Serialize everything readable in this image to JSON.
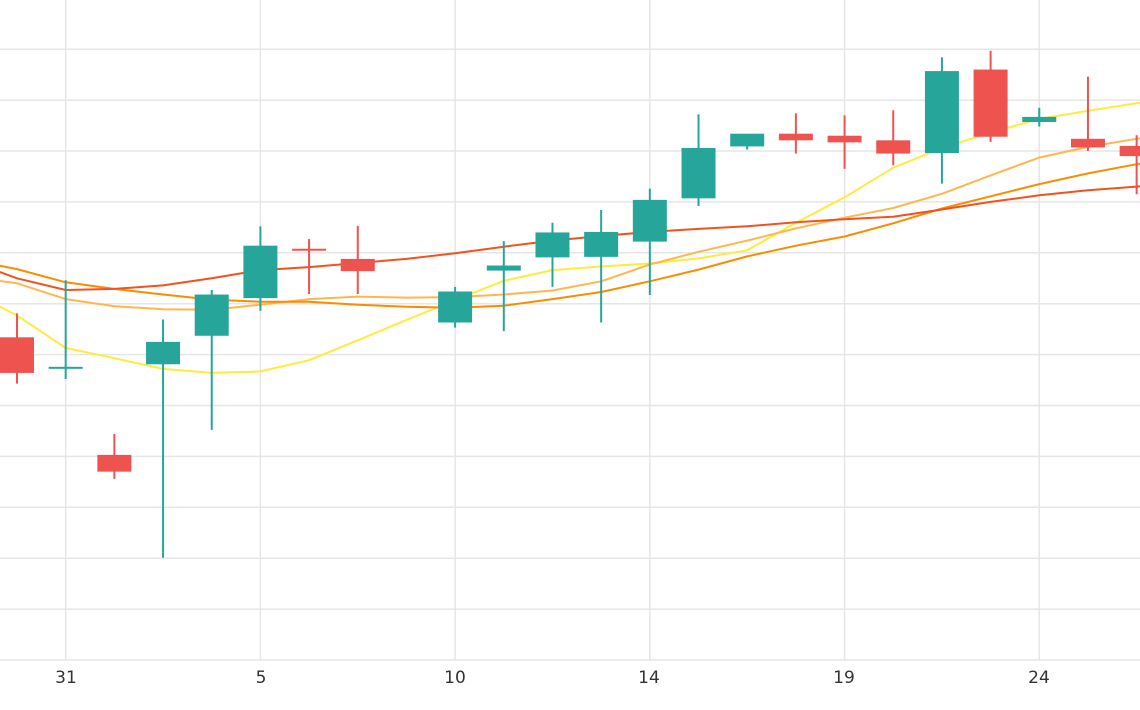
{
  "chart_data": {
    "type": "candlestick",
    "title": "",
    "xlabel": "",
    "ylabel": "",
    "x_tick_labels": [
      "31",
      "5",
      "10",
      "14",
      "19",
      "24"
    ],
    "y_unit": "price (unlabeled, gridline units)",
    "ylim": [
      0,
      13
    ],
    "grid": true,
    "legend": "none",
    "colors": {
      "up": "#26a69a",
      "down": "#ef5350",
      "ma_yellow": "#ffeb3b",
      "ma_light_orange": "#ffb74d",
      "ma_orange": "#fb8c00",
      "ma_red": "#f4511e",
      "grid": "#e6e6e6",
      "text": "#333333"
    },
    "candles": [
      {
        "day": 30,
        "open": 6.34,
        "high": 6.81,
        "low": 5.43,
        "close": 5.64
      },
      {
        "day": 31,
        "open": 5.76,
        "high": 7.46,
        "low": 5.52,
        "close": 5.76
      },
      {
        "day": 1,
        "open": 4.03,
        "high": 4.44,
        "low": 3.56,
        "close": 3.7
      },
      {
        "day": 2,
        "open": 5.81,
        "high": 6.69,
        "low": 2.01,
        "close": 6.25
      },
      {
        "day": 3,
        "open": 6.37,
        "high": 7.27,
        "low": 4.52,
        "close": 7.18
      },
      {
        "day": 4,
        "open": 7.11,
        "high": 8.52,
        "low": 6.86,
        "close": 8.14
      },
      {
        "day": 5,
        "open": 8.08,
        "high": 8.27,
        "low": 7.19,
        "close": 8.06
      },
      {
        "day": 6,
        "open": 7.88,
        "high": 8.53,
        "low": 7.19,
        "close": 7.64
      },
      {
        "day": 8,
        "open": 6.63,
        "high": 7.33,
        "low": 6.53,
        "close": 7.24
      },
      {
        "day": 9,
        "open": 7.65,
        "high": 8.23,
        "low": 6.46,
        "close": 7.75
      },
      {
        "day": 10,
        "open": 7.91,
        "high": 8.59,
        "low": 7.33,
        "close": 8.4
      },
      {
        "day": 11,
        "open": 7.92,
        "high": 8.84,
        "low": 6.63,
        "close": 8.41
      },
      {
        "day": 12,
        "open": 8.22,
        "high": 9.26,
        "low": 7.17,
        "close": 9.04
      },
      {
        "day": 13,
        "open": 9.07,
        "high": 10.72,
        "low": 8.92,
        "close": 10.06
      },
      {
        "day": 14,
        "open": 10.09,
        "high": 10.33,
        "low": 10.03,
        "close": 10.34
      },
      {
        "day": 15,
        "open": 10.34,
        "high": 10.74,
        "low": 9.95,
        "close": 10.21
      },
      {
        "day": 16,
        "open": 10.3,
        "high": 10.7,
        "low": 9.65,
        "close": 10.17
      },
      {
        "day": 17,
        "open": 10.21,
        "high": 10.8,
        "low": 9.72,
        "close": 9.95
      },
      {
        "day": 18,
        "open": 9.96,
        "high": 11.84,
        "low": 9.36,
        "close": 11.57
      },
      {
        "day": 19,
        "open": 11.6,
        "high": 11.97,
        "low": 10.18,
        "close": 10.28
      },
      {
        "day": 20,
        "open": 10.57,
        "high": 10.85,
        "low": 10.48,
        "close": 10.67
      },
      {
        "day": 21,
        "open": 10.24,
        "high": 11.46,
        "low": 10.0,
        "close": 10.07
      },
      {
        "day": 22,
        "open": 10.1,
        "high": 10.31,
        "low": 9.15,
        "close": 9.9
      },
      {
        "day": 23,
        "open": 9.89,
        "high": 10.19,
        "low": 8.81,
        "close": 8.75
      }
    ],
    "moving_averages": [
      {
        "color_key": "ma_yellow",
        "values": [
          [
            -1.0,
            7.45
          ],
          [
            -0.5,
            7.25
          ],
          [
            0.0,
            6.77
          ],
          [
            0.5,
            6.13
          ],
          [
            1.0,
            5.93
          ],
          [
            1.5,
            5.72
          ],
          [
            2.0,
            5.64
          ],
          [
            2.5,
            5.67
          ],
          [
            3.0,
            5.89
          ],
          [
            3.5,
            6.28
          ],
          [
            4.0,
            6.68
          ],
          [
            4.5,
            7.07
          ],
          [
            5.0,
            7.45
          ],
          [
            5.5,
            7.66
          ],
          [
            6.0,
            7.73
          ],
          [
            6.5,
            7.79
          ],
          [
            7.0,
            7.89
          ],
          [
            7.5,
            8.05
          ],
          [
            8.0,
            8.59
          ],
          [
            8.5,
            9.09
          ],
          [
            9.0,
            9.67
          ],
          [
            9.5,
            10.06
          ],
          [
            10.0,
            10.36
          ],
          [
            10.5,
            10.63
          ],
          [
            11.0,
            10.79
          ],
          [
            11.5,
            10.94
          ],
          [
            12.0,
            10.98
          ],
          [
            12.5,
            10.85
          ],
          [
            13.0,
            10.59
          ],
          [
            13.5,
            10.39
          ],
          [
            14.0,
            10.12
          ],
          [
            14.5,
            9.76
          ]
        ]
      },
      {
        "color_key": "ma_light_orange",
        "values": [
          [
            -1.0,
            7.54
          ],
          [
            -0.5,
            7.53
          ],
          [
            0.0,
            7.4
          ],
          [
            0.5,
            7.09
          ],
          [
            1.0,
            6.95
          ],
          [
            1.5,
            6.89
          ],
          [
            2.0,
            6.88
          ],
          [
            2.5,
            6.98
          ],
          [
            3.0,
            7.09
          ],
          [
            3.5,
            7.14
          ],
          [
            4.0,
            7.12
          ],
          [
            4.5,
            7.13
          ],
          [
            5.0,
            7.18
          ],
          [
            5.5,
            7.26
          ],
          [
            6.0,
            7.44
          ],
          [
            6.5,
            7.77
          ],
          [
            7.0,
            8.02
          ],
          [
            7.5,
            8.24
          ],
          [
            8.0,
            8.48
          ],
          [
            8.5,
            8.69
          ],
          [
            9.0,
            8.88
          ],
          [
            9.5,
            9.16
          ],
          [
            10.0,
            9.52
          ],
          [
            10.5,
            9.87
          ],
          [
            11.0,
            10.08
          ],
          [
            11.5,
            10.24
          ],
          [
            12.0,
            10.39
          ],
          [
            12.5,
            10.52
          ],
          [
            13.0,
            10.67
          ],
          [
            13.5,
            10.83
          ],
          [
            14.0,
            10.96
          ],
          [
            14.5,
            11.05
          ]
        ]
      },
      {
        "color_key": "ma_orange",
        "values": [
          [
            -1.0,
            7.92
          ],
          [
            -0.5,
            7.87
          ],
          [
            0.0,
            7.68
          ],
          [
            0.5,
            7.42
          ],
          [
            1.0,
            7.29
          ],
          [
            1.5,
            7.18
          ],
          [
            2.0,
            7.08
          ],
          [
            2.5,
            7.04
          ],
          [
            3.0,
            7.04
          ],
          [
            3.5,
            6.98
          ],
          [
            4.0,
            6.94
          ],
          [
            4.5,
            6.92
          ],
          [
            5.0,
            6.96
          ],
          [
            5.5,
            7.09
          ],
          [
            6.0,
            7.23
          ],
          [
            6.5,
            7.44
          ],
          [
            7.0,
            7.67
          ],
          [
            7.5,
            7.93
          ],
          [
            8.0,
            8.14
          ],
          [
            8.5,
            8.32
          ],
          [
            9.0,
            8.58
          ],
          [
            9.5,
            8.87
          ],
          [
            10.0,
            9.11
          ],
          [
            10.5,
            9.35
          ],
          [
            11.0,
            9.56
          ],
          [
            11.5,
            9.74
          ],
          [
            12.0,
            9.88
          ],
          [
            12.5,
            10.03
          ],
          [
            13.0,
            10.17
          ],
          [
            13.5,
            10.3
          ],
          [
            14.0,
            10.48
          ],
          [
            14.5,
            10.66
          ]
        ]
      },
      {
        "color_key": "ma_red",
        "values": [
          [
            -1.0,
            7.96
          ],
          [
            -0.5,
            7.85
          ],
          [
            0.0,
            7.5
          ],
          [
            0.5,
            7.27
          ],
          [
            1.0,
            7.29
          ],
          [
            1.5,
            7.36
          ],
          [
            2.0,
            7.5
          ],
          [
            2.5,
            7.66
          ],
          [
            3.0,
            7.72
          ],
          [
            3.5,
            7.8
          ],
          [
            4.0,
            7.88
          ],
          [
            4.5,
            7.99
          ],
          [
            5.0,
            8.12
          ],
          [
            5.5,
            8.24
          ],
          [
            6.0,
            8.33
          ],
          [
            6.5,
            8.41
          ],
          [
            7.0,
            8.47
          ],
          [
            7.5,
            8.52
          ],
          [
            8.0,
            8.6
          ],
          [
            8.5,
            8.66
          ],
          [
            9.0,
            8.71
          ],
          [
            9.5,
            8.85
          ],
          [
            10.0,
            9.0
          ],
          [
            10.5,
            9.13
          ],
          [
            11.0,
            9.23
          ],
          [
            11.5,
            9.3
          ],
          [
            12.0,
            9.36
          ],
          [
            12.5,
            9.44
          ],
          [
            13.0,
            9.49
          ],
          [
            13.5,
            9.54
          ],
          [
            14.0,
            9.59
          ],
          [
            14.5,
            9.64
          ]
        ]
      }
    ]
  }
}
